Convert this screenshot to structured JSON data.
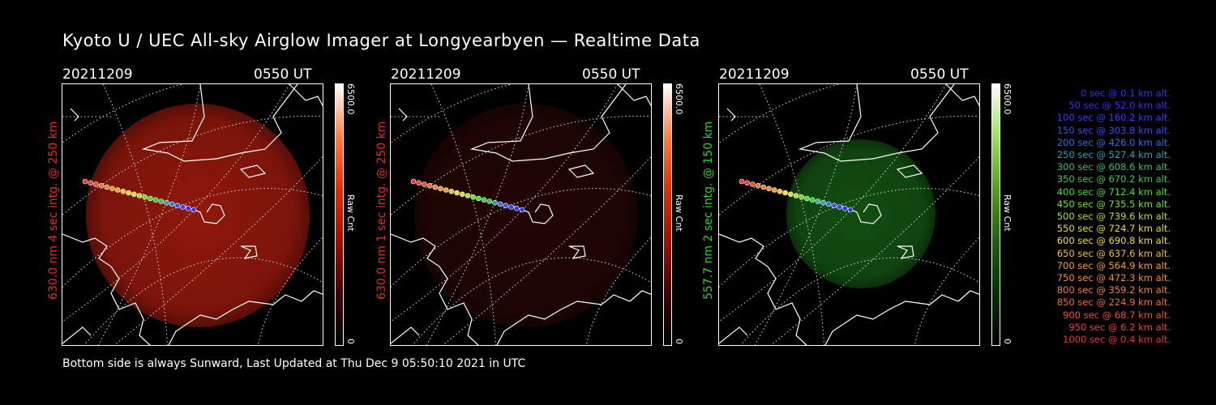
{
  "title": "Kyoto U / UEC All-sky Airglow Imager at Longyearbyen — Realtime Data",
  "footer": "Bottom side is always Sunward, Last Updated at Thu Dec  9 05:50:10 2021 in UTC",
  "panels": [
    {
      "date": "20211209",
      "time": "0550 UT",
      "ylabel": "630.0 nm 4 sec intg. @ 250 km",
      "ylabel_color": "#e03020",
      "cbar_max": "6500.0",
      "cbar_min": "0",
      "cbar_label": "Raw Cnt",
      "glow_color": "#c02010",
      "glow_opacity": 0.75
    },
    {
      "date": "20211209",
      "time": "0550 UT",
      "ylabel": "630.0 nm 1 sec intg. @ 250 km",
      "ylabel_color": "#e03020",
      "cbar_max": "6500.0",
      "cbar_min": "0",
      "cbar_label": "Raw Cnt",
      "glow_color": "#601008",
      "glow_opacity": 0.35
    },
    {
      "date": "20211209",
      "time": "0550 UT",
      "ylabel": "557.7 nm 2 sec intg. @ 150 km",
      "ylabel_color": "#30d030",
      "cbar_max": "6500.0",
      "cbar_min": "0",
      "cbar_label": "Raw Cnt",
      "glow_color": "#1a7018",
      "glow_opacity": 0.7
    }
  ],
  "legend": [
    {
      "text": "0 sec @   0.1 km alt.",
      "color": "#3030ff"
    },
    {
      "text": "50 sec @  52.0 km alt.",
      "color": "#3030ff"
    },
    {
      "text": "100 sec @ 160.2 km alt.",
      "color": "#3040ff"
    },
    {
      "text": "150 sec @ 303.8 km alt.",
      "color": "#3050ff"
    },
    {
      "text": "200 sec @ 426.0 km alt.",
      "color": "#3070e0"
    },
    {
      "text": "250 sec @ 527.4 km alt.",
      "color": "#30a0b0"
    },
    {
      "text": "300 sec @ 608.6 km alt.",
      "color": "#30c070"
    },
    {
      "text": "350 sec @ 670.2 km alt.",
      "color": "#30d040"
    },
    {
      "text": "400 sec @ 712.4 km alt.",
      "color": "#40e030"
    },
    {
      "text": "450 sec @ 735.5 km alt.",
      "color": "#70e030"
    },
    {
      "text": "500 sec @ 739.6 km alt.",
      "color": "#b0e030"
    },
    {
      "text": "550 sec @ 724.7 km alt.",
      "color": "#e0e030"
    },
    {
      "text": "600 sec @ 690.8 km alt.",
      "color": "#f0e030"
    },
    {
      "text": "650 sec @ 637.6 km alt.",
      "color": "#f0c030"
    },
    {
      "text": "700 sec @ 564.9 km alt.",
      "color": "#f0a030"
    },
    {
      "text": "750 sec @ 472.3 km alt.",
      "color": "#f09030"
    },
    {
      "text": "800 sec @ 359.2 km alt.",
      "color": "#f08030"
    },
    {
      "text": "850 sec @ 224.9 km alt.",
      "color": "#f07030"
    },
    {
      "text": "900 sec @  68.7 km alt.",
      "color": "#f05030"
    },
    {
      "text": "950 sec @   6.2 km alt.",
      "color": "#f04030"
    },
    {
      "text": "1000 sec @   0.4 km alt.",
      "color": "#f03030"
    }
  ]
}
